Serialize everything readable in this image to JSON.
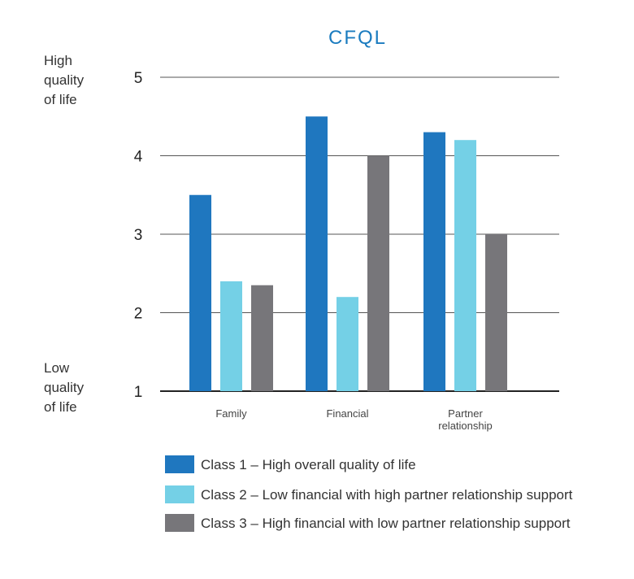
{
  "chart_data": {
    "type": "bar",
    "title": "CFQL",
    "categories": [
      "Family",
      "Financial",
      "Partner relationship"
    ],
    "category_lines": [
      [
        "Family"
      ],
      [
        "Financial"
      ],
      [
        "Partner",
        "relationship"
      ]
    ],
    "series": [
      {
        "name": "Class 1 – High overall quality of life",
        "color": "#1f77bf",
        "values": [
          3.5,
          4.5,
          4.3
        ]
      },
      {
        "name": "Class 2 – Low financial with high partner relationship support",
        "color": "#74d0e6",
        "values": [
          2.4,
          2.2,
          4.2
        ]
      },
      {
        "name": "Class 3 – High financial with low partner relationship support",
        "color": "#77767a",
        "values": [
          2.35,
          4.0,
          3.0
        ]
      }
    ],
    "ylim": [
      1,
      5
    ],
    "yticks": [
      1,
      2,
      3,
      4,
      5
    ],
    "ylabel_high": [
      "High",
      "quality",
      "of life"
    ],
    "ylabel_low": [
      "Low",
      "quality",
      "of life"
    ],
    "grid": true,
    "legend_position": "bottom",
    "colors": {
      "title": "#1a7bbf",
      "gridline": "#555555",
      "axis": "#222222"
    }
  }
}
